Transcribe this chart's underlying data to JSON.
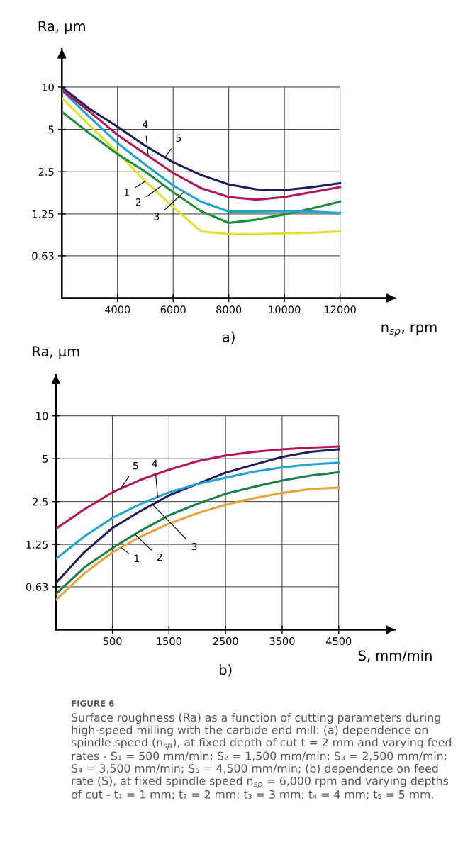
{
  "chart_data": [
    {
      "type": "line",
      "title": "a)",
      "xlabel": "n$_{sp}$, rpm",
      "ylabel": "Ra, μm",
      "log": true,
      "grid": true,
      "xlim": [
        2000,
        14000
      ],
      "ylim": [
        0.315,
        18.7
      ],
      "xticks": [
        4000,
        6000,
        8000,
        10000,
        12000
      ],
      "yticks": [
        0.63,
        1.25,
        2.5,
        5,
        10
      ],
      "x": [
        2000,
        3000,
        4000,
        5000,
        6000,
        7000,
        8000,
        9000,
        10000,
        11000,
        12000
      ],
      "series": [
        {
          "color": "#e6df2e",
          "values": [
            8.36,
            5.35,
            3.42,
            2.14,
            1.4,
            0.94,
            0.9,
            0.9,
            0.91,
            0.92,
            0.94
          ]
        },
        {
          "color": "#1a8f3c",
          "values": [
            6.68,
            4.67,
            3.34,
            2.5,
            1.79,
            1.31,
            1.08,
            1.14,
            1.24,
            1.37,
            1.53
          ]
        },
        {
          "color": "#1fa3d1",
          "values": [
            9.5,
            6.11,
            4.0,
            2.8,
            2.0,
            1.53,
            1.3,
            1.3,
            1.31,
            1.3,
            1.27
          ]
        },
        {
          "color": "#b5135a",
          "values": [
            9.56,
            6.68,
            4.57,
            3.34,
            2.45,
            1.91,
            1.65,
            1.58,
            1.65,
            1.79,
            1.94
          ]
        },
        {
          "color": "#1c1c5e",
          "values": [
            10,
            6.99,
            5.23,
            3.82,
            2.92,
            2.37,
            2.03,
            1.87,
            1.85,
            1.94,
            2.07
          ]
        }
      ],
      "annotations": [
        {
          "text": "1",
          "x": 5000,
          "y": 2.14
        },
        {
          "text": "2",
          "x": 5600,
          "y": 2.0
        },
        {
          "text": "3",
          "x": 6400,
          "y": 1.8
        },
        {
          "text": "4",
          "x": 5100,
          "y": 3.3
        },
        {
          "text": "5",
          "x": 5700,
          "y": 3.15
        }
      ]
    },
    {
      "type": "line",
      "title": "b)",
      "xlabel": "S, mm/min",
      "ylabel": "Ra, μm",
      "log": true,
      "grid": true,
      "xlim": [
        -500,
        5500
      ],
      "ylim": [
        0.315,
        19.5
      ],
      "xticks": [
        500,
        1500,
        2500,
        3500,
        4500
      ],
      "yticks": [
        0.63,
        1.25,
        2.5,
        5,
        10
      ],
      "x": [
        -500,
        0,
        500,
        1000,
        1500,
        2000,
        2500,
        3000,
        3500,
        4000,
        4500
      ],
      "series": [
        {
          "color": "#e8a33a",
          "values": [
            0.51,
            0.78,
            1.1,
            1.42,
            1.75,
            2.07,
            2.38,
            2.64,
            2.87,
            3.06,
            3.13
          ]
        },
        {
          "color": "#1a8046",
          "values": [
            0.56,
            0.86,
            1.18,
            1.56,
            2.0,
            2.41,
            2.83,
            3.17,
            3.51,
            3.81,
            4.01
          ]
        },
        {
          "color": "#1c1c5e",
          "values": [
            0.67,
            1.1,
            1.63,
            2.15,
            2.76,
            3.32,
            3.99,
            4.54,
            5.14,
            5.58,
            5.82
          ]
        },
        {
          "color": "#1fa3d1",
          "values": [
            0.99,
            1.42,
            1.92,
            2.41,
            2.9,
            3.32,
            3.68,
            4.05,
            4.34,
            4.56,
            4.69
          ]
        },
        {
          "color": "#b5135a",
          "values": [
            1.61,
            2.2,
            2.9,
            3.56,
            4.18,
            4.8,
            5.26,
            5.58,
            5.82,
            5.98,
            6.09
          ]
        }
      ],
      "annotations": [
        {
          "text": "1",
          "x": 650,
          "y": 1.19
        },
        {
          "text": "2",
          "x": 900,
          "y": 1.47
        },
        {
          "text": "3",
          "x": 1200,
          "y": 2.4
        },
        {
          "text": "4",
          "x": 1300,
          "y": 2.7
        },
        {
          "text": "5",
          "x": 650,
          "y": 3.1
        },
        "FIGURE 6",
        "Surface roughness (Ra) as a function of cutting parameters during high-speed milling with the carbide end mill: (a) dependence on spindle speed (n$_{sp}$), at fixed depth of cut t = 2 mm and varying feed rates - S₁ = 500 mm/min; S₂ = 1,500 mm/min; S₃ = 2,500 mm/min; S₄ = 3,500 mm/min; S₅ = 4,500 mm/min; (b) dependence on feed rate (S), at fixed spindle speed n$_{sp}$ = 6,000 rpm and varying depths of cut - t₁ = 1 mm; t₂ = 2 mm; t₃ = 3 mm; t₄ = 4 mm; t₅ = 5 mm."
      ]
    }
  ]
}
